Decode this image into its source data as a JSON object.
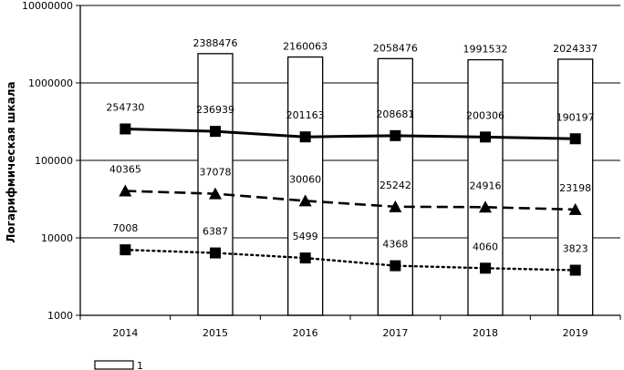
{
  "chart_data": {
    "type": "bar",
    "y_scale": "log",
    "ylim": [
      1000,
      10000000
    ],
    "y_ticks": [
      "1000",
      "10000",
      "100000",
      "1000000",
      "10000000"
    ],
    "ylabel": "Логарифмическая шкала",
    "categories": [
      "2014",
      "2015",
      "2016",
      "2017",
      "2018",
      "2019"
    ],
    "bar_series": {
      "values": [
        null,
        2388476,
        2160063,
        2058476,
        1991532,
        2024337
      ],
      "labels": [
        "",
        "2388476",
        "2160063",
        "2058476",
        "1991532",
        "2024337"
      ],
      "color": "#ffffff"
    },
    "line_series": [
      {
        "style": "solid",
        "marker": "square",
        "color": "#000000",
        "values": [
          254730,
          236939,
          201163,
          208681,
          200306,
          190197
        ],
        "labels": [
          "254730",
          "236939",
          "201163",
          "208681",
          "200306",
          "190197"
        ]
      },
      {
        "style": "dashed",
        "marker": "triangle",
        "color": "#000000",
        "values": [
          40365,
          37078,
          30060,
          25242,
          24916,
          23198
        ],
        "labels": [
          "40365",
          "37078",
          "30060",
          "25242",
          "24916",
          "23198"
        ]
      },
      {
        "style": "dotted",
        "marker": "square",
        "color": "#000000",
        "values": [
          7008,
          6387,
          5499,
          4368,
          4060,
          3823
        ],
        "labels": [
          "7008",
          "6387",
          "5499",
          "4368",
          "4060",
          "3823"
        ]
      }
    ],
    "legend": {
      "placement": "bottom",
      "entries": [
        "1"
      ]
    },
    "grid": true
  }
}
